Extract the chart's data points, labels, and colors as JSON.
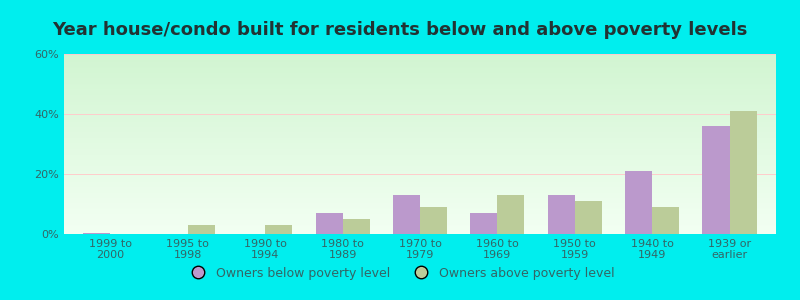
{
  "title": "Year house/condo built for residents below and above poverty levels",
  "categories": [
    "1999 to\n2000",
    "1995 to\n1998",
    "1990 to\n1994",
    "1980 to\n1989",
    "1970 to\n1979",
    "1960 to\n1969",
    "1950 to\n1959",
    "1940 to\n1949",
    "1939 or\nearlier"
  ],
  "below_poverty": [
    0.5,
    0.0,
    0.0,
    7.0,
    13.0,
    7.0,
    13.0,
    21.0,
    36.0
  ],
  "above_poverty": [
    0.0,
    3.0,
    3.0,
    5.0,
    9.0,
    13.0,
    11.0,
    9.0,
    41.0
  ],
  "below_color": "#bb99cc",
  "above_color": "#bbcc99",
  "ylim": [
    0,
    60
  ],
  "yticks": [
    0,
    20,
    40,
    60
  ],
  "ytick_labels": [
    "0%",
    "20%",
    "40%",
    "60%"
  ],
  "outer_background": "#00eeee",
  "bar_width": 0.35,
  "title_fontsize": 13,
  "tick_fontsize": 8,
  "legend_fontsize": 9
}
